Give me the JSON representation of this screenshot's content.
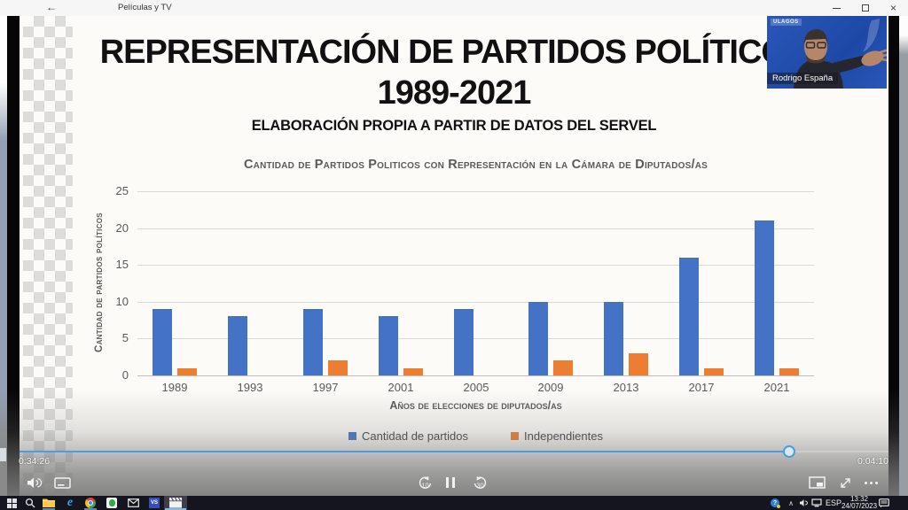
{
  "window": {
    "title": "Películas y TV",
    "back_icon": "←",
    "close_icon": "×"
  },
  "webcam": {
    "logo_text": "ULAGOS",
    "name_tag": "Rodrigo España"
  },
  "slide": {
    "title_line1": "REPRESENTACIÓN DE PARTIDOS POLÍTICOS",
    "title_line2": "1989-2021",
    "subtitle": "ELABORACIÓN PROPIA A PARTIR DE DATOS DEL SERVEL"
  },
  "chart_data": {
    "type": "bar",
    "title": "Cantidad de Partidos Politicos con Representación en la Cámara de Diputados/as",
    "categories": [
      "1989",
      "1993",
      "1997",
      "2001",
      "2005",
      "2009",
      "2013",
      "2017",
      "2021"
    ],
    "series": [
      {
        "name": "Cantidad de partidos",
        "color": "#4472C4",
        "values": [
          9,
          8,
          9,
          8,
          9,
          10,
          10,
          16,
          21
        ]
      },
      {
        "name": "Independientes",
        "color": "#ED7D31",
        "values": [
          1,
          0,
          2,
          1,
          0,
          2,
          3,
          1,
          1
        ]
      }
    ],
    "xlabel": "Años de elecciones de diputados/as",
    "ylabel": "Cantidad de partidos políticos",
    "ylim": [
      0,
      25
    ],
    "yticks": [
      0,
      5,
      10,
      15,
      20,
      25
    ],
    "grid": true,
    "legend_position": "bottom"
  },
  "player": {
    "elapsed": "0:34:26",
    "remaining": "0:04:10",
    "progress_pct": 88.6,
    "skip_back_label": "10",
    "skip_forward_label": "30",
    "accent_color": "#4D9BE0"
  },
  "taskbar": {
    "language": "ESP",
    "time": "13:32",
    "date": "24/07/2023"
  }
}
